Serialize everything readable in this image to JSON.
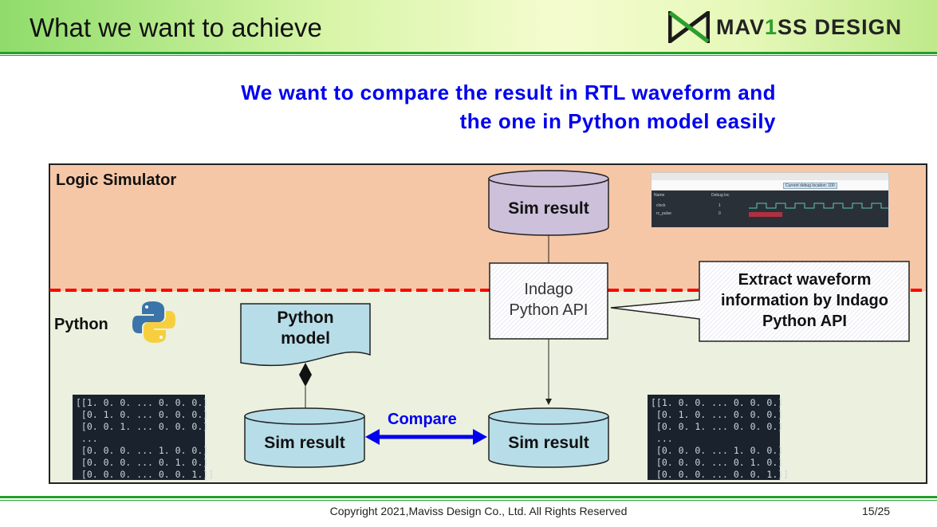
{
  "header": {
    "title": "What we want to achieve",
    "logo_text": "MAV1SS DESIGN"
  },
  "subtitle": {
    "line1": "We want to compare the result in RTL waveform and",
    "line2": "the one in Python model easily"
  },
  "diagram": {
    "logic_simulator_label": "Logic Simulator",
    "python_label": "Python",
    "sim_result_top": "Sim result",
    "indago_line1": "Indago",
    "indago_line2": "Python API",
    "callout_line1": "Extract waveform",
    "callout_line2": "information by Indago",
    "callout_line3": "Python API",
    "python_model_line1": "Python",
    "python_model_line2": "model",
    "sim_result_left": "Sim result",
    "sim_result_right": "Sim result",
    "compare_label": "Compare",
    "matrix_left": "[[1. 0. 0. ... 0. 0. 0.]\n [0. 1. 0. ... 0. 0. 0.]\n [0. 0. 1. ... 0. 0. 0.]\n ...\n [0. 0. 0. ... 1. 0. 0.]\n [0. 0. 0. ... 0. 1. 0.]\n [0. 0. 0. ... 0. 0. 1.]]",
    "matrix_right": "[[1. 0. 0. ... 0. 0. 0.]\n [0. 1. 0. ... 0. 0. 0.]\n [0. 0. 1. ... 0. 0. 0.]\n ...\n [0. 0. 0. ... 1. 0. 0.]\n [0. 0. 0. ... 0. 1. 0.]\n [0. 0. 0. ... 0. 0. 1.]]",
    "waveform": {
      "tooltip": "Current debug location: 100",
      "signals": [
        "clock",
        "rc_pulse"
      ],
      "values": [
        "1",
        "0"
      ],
      "col_name": "Name",
      "col_debug": "Debug loc"
    }
  },
  "footer": {
    "copyright": "Copyright 2021,Maviss Design Co., Ltd. All Rights Reserved",
    "page": "15/25"
  },
  "colors": {
    "accent_green": "#22a02a",
    "subtitle_blue": "#0000ee",
    "sim_orange": "#f6c7a6",
    "python_green": "#ebf1de",
    "divider_red": "#ff0000",
    "cylinder_blue": "#b7dde8",
    "cylinder_purple": "#ccc0da"
  }
}
